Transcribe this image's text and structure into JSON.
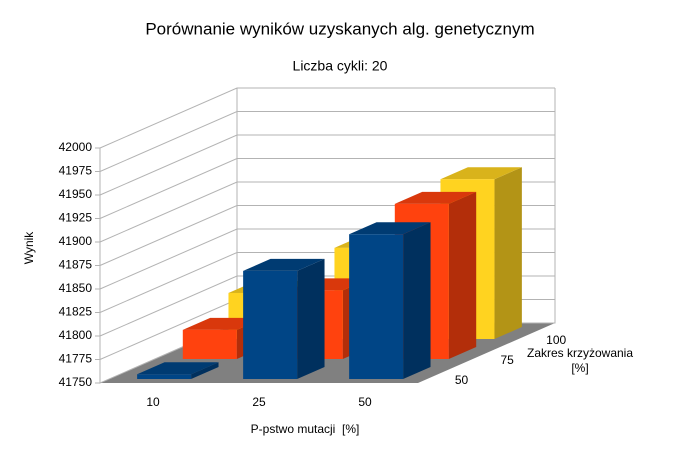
{
  "chart_data": {
    "type": "bar3d",
    "title": "Porównanie wyników uzyskanych alg. genetycznym",
    "subtitle": "Liczba cykli: 20",
    "x_label": "P-pstwo mutacji  [%]",
    "y_label": "Wynik",
    "z_label": "Zakres krzyżowania [%]",
    "categories": [
      "10",
      "25",
      "50"
    ],
    "series": [
      {
        "name": "50",
        "color": "#004586",
        "values": [
          41755,
          41865,
          41904
        ]
      },
      {
        "name": "75",
        "color": "#ff420e",
        "values": [
          41781,
          41823,
          41915
        ]
      },
      {
        "name": "100",
        "color": "#ffd320",
        "values": [
          41799,
          41847,
          41920
        ]
      }
    ],
    "ylim": [
      41750,
      42000
    ],
    "yticks": [
      41750,
      41775,
      41800,
      41825,
      41850,
      41875,
      41900,
      41925,
      41950,
      41975,
      42000
    ],
    "grid": true
  }
}
